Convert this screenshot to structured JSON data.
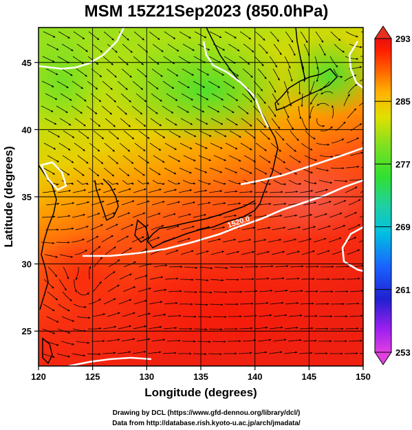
{
  "title": "MSM 15Z21Sep2023 (850.0hPa)",
  "axes": {
    "xlabel": "Longitude (degrees)",
    "ylabel": "Latitude  (degrees)",
    "xticks": [
      {
        "value": 120,
        "label": "120"
      },
      {
        "value": 125,
        "label": "125"
      },
      {
        "value": 130,
        "label": "130"
      },
      {
        "value": 135,
        "label": "135"
      },
      {
        "value": 140,
        "label": "140"
      },
      {
        "value": 145,
        "label": "145"
      },
      {
        "value": 150,
        "label": "150"
      }
    ],
    "yticks": [
      {
        "value": 25,
        "label": "25"
      },
      {
        "value": 30,
        "label": "30"
      },
      {
        "value": 35,
        "label": "35"
      },
      {
        "value": 40,
        "label": "40"
      },
      {
        "value": 45,
        "label": "45"
      }
    ],
    "xlim": [
      120,
      150
    ],
    "ylim": [
      22.4,
      47.6
    ]
  },
  "colorbar": {
    "ticks": [
      {
        "value": 253,
        "label": "253"
      },
      {
        "value": 261,
        "label": "261"
      },
      {
        "value": 269,
        "label": "269"
      },
      {
        "value": 277,
        "label": "277"
      },
      {
        "value": 285,
        "label": "285"
      },
      {
        "value": 293,
        "label": "293"
      }
    ],
    "range": [
      253,
      293
    ],
    "colors_bottom_to_top": [
      "#e040e0",
      "#a020f0",
      "#2020d0",
      "#1a60ff",
      "#00c0e0",
      "#20d0a0",
      "#30e030",
      "#80e020",
      "#e0e000",
      "#ffb000",
      "#ff6000",
      "#ff2000",
      "#e81010"
    ]
  },
  "contour": {
    "label": "1520.0",
    "color": "#ffffff"
  },
  "credits": {
    "line1": "Drawing by DCL (https://www.gfd-dennou.org/library/dcl/)",
    "line2": "Data from http://database.rish.kyoto-u.ac.jp/arch/jmadata/"
  },
  "colors": {
    "cold": "#88e010",
    "mid": "#e8d000",
    "warm": "#ff5010",
    "hot": "#f02810",
    "coast": "#000000"
  }
}
